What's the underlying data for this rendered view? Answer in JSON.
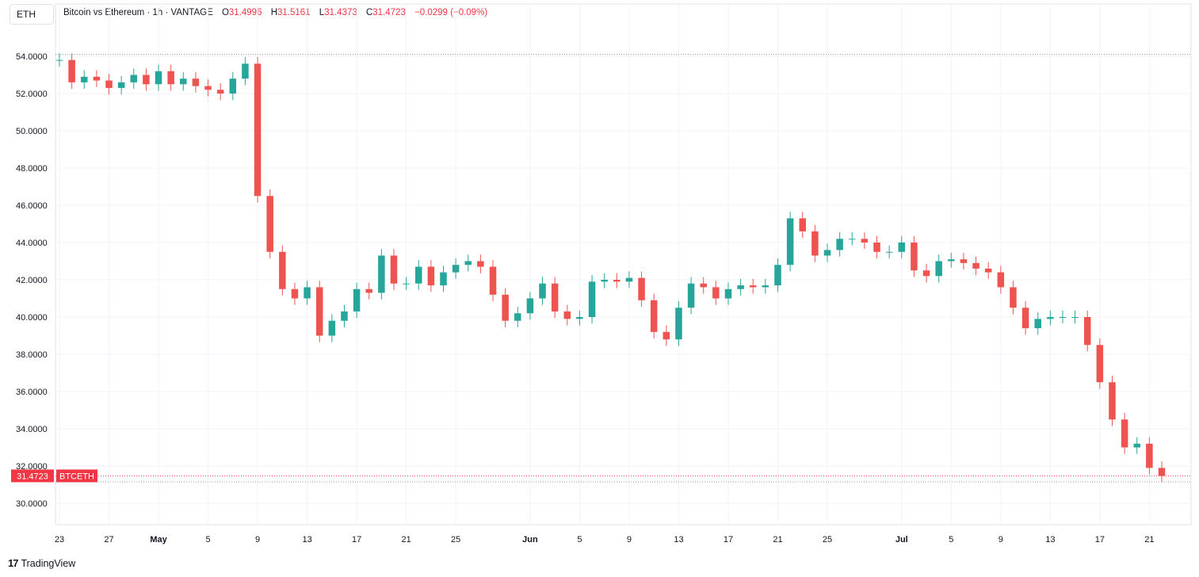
{
  "symbol_box": "ETH",
  "legend": {
    "title": "Bitcoin vs Ethereum · 1h · VANTAGE",
    "o_label": "O",
    "o_value": "31.4996",
    "h_label": "H",
    "h_value": "31.5161",
    "l_label": "L",
    "l_value": "31.4373",
    "c_label": "C",
    "c_value": "31.4723",
    "change": "−0.0299 (−0.09%)"
  },
  "footer": {
    "logo": "17",
    "brand": "TradingView"
  },
  "colors": {
    "up": "#26a69a",
    "down": "#ef5350",
    "grid": "#f0f3fa",
    "last_price": "#f23645"
  },
  "chart_data": {
    "type": "candlestick",
    "interval": "1h",
    "ylim": [
      29.0,
      55.0
    ],
    "y_ticks": [
      "30.0000",
      "32.0000",
      "34.0000",
      "36.0000",
      "38.0000",
      "40.0000",
      "42.0000",
      "44.0000",
      "46.0000",
      "48.0000",
      "50.0000",
      "52.0000",
      "54.0000"
    ],
    "x_ticks": [
      "23",
      "27",
      "May",
      "5",
      "9",
      "13",
      "17",
      "21",
      "25",
      "Jun",
      "5",
      "9",
      "13",
      "17",
      "21",
      "25",
      "Jul",
      "5",
      "9",
      "13",
      "17",
      "21"
    ],
    "last_price": "31.4723",
    "last_label": "BTCETH",
    "high_marker": 54.1,
    "low_marker": 31.15,
    "series": [
      {
        "date": "Apr 23",
        "value": 53.8
      },
      {
        "date": "Apr 24",
        "value": 52.6
      },
      {
        "date": "Apr 25",
        "value": 52.9
      },
      {
        "date": "Apr 26",
        "value": 52.7
      },
      {
        "date": "Apr 27",
        "value": 52.3
      },
      {
        "date": "Apr 28",
        "value": 52.6
      },
      {
        "date": "Apr 29",
        "value": 53.0
      },
      {
        "date": "Apr 30",
        "value": 52.5
      },
      {
        "date": "May 1",
        "value": 53.2
      },
      {
        "date": "May 2",
        "value": 52.5
      },
      {
        "date": "May 3",
        "value": 52.8
      },
      {
        "date": "May 4",
        "value": 52.4
      },
      {
        "date": "May 5",
        "value": 52.2
      },
      {
        "date": "May 6",
        "value": 52.0
      },
      {
        "date": "May 7",
        "value": 52.8
      },
      {
        "date": "May 8",
        "value": 53.6
      },
      {
        "date": "May 9",
        "value": 46.5
      },
      {
        "date": "May 10",
        "value": 43.5
      },
      {
        "date": "May 11",
        "value": 41.5
      },
      {
        "date": "May 12",
        "value": 41.0
      },
      {
        "date": "May 13",
        "value": 41.6
      },
      {
        "date": "May 14",
        "value": 39.0
      },
      {
        "date": "May 15",
        "value": 39.8
      },
      {
        "date": "May 16",
        "value": 40.3
      },
      {
        "date": "May 17",
        "value": 41.5
      },
      {
        "date": "May 18",
        "value": 41.3
      },
      {
        "date": "May 19",
        "value": 43.3
      },
      {
        "date": "May 20",
        "value": 41.8
      },
      {
        "date": "May 21",
        "value": 41.8
      },
      {
        "date": "May 22",
        "value": 42.7
      },
      {
        "date": "May 23",
        "value": 41.7
      },
      {
        "date": "May 24",
        "value": 42.4
      },
      {
        "date": "May 25",
        "value": 42.8
      },
      {
        "date": "May 26",
        "value": 43.0
      },
      {
        "date": "May 27",
        "value": 42.7
      },
      {
        "date": "May 28",
        "value": 41.2
      },
      {
        "date": "May 29",
        "value": 39.8
      },
      {
        "date": "May 30",
        "value": 40.2
      },
      {
        "date": "May 31",
        "value": 41.0
      },
      {
        "date": "Jun 1",
        "value": 41.8
      },
      {
        "date": "Jun 2",
        "value": 40.3
      },
      {
        "date": "Jun 3",
        "value": 39.9
      },
      {
        "date": "Jun 4",
        "value": 40.0
      },
      {
        "date": "Jun 5",
        "value": 41.9
      },
      {
        "date": "Jun 6",
        "value": 42.0
      },
      {
        "date": "Jun 7",
        "value": 41.9
      },
      {
        "date": "Jun 8",
        "value": 42.1
      },
      {
        "date": "Jun 9",
        "value": 40.9
      },
      {
        "date": "Jun 10",
        "value": 39.2
      },
      {
        "date": "Jun 11",
        "value": 38.8
      },
      {
        "date": "Jun 12",
        "value": 40.5
      },
      {
        "date": "Jun 13",
        "value": 41.8
      },
      {
        "date": "Jun 14",
        "value": 41.6
      },
      {
        "date": "Jun 15",
        "value": 41.0
      },
      {
        "date": "Jun 16",
        "value": 41.5
      },
      {
        "date": "Jun 17",
        "value": 41.7
      },
      {
        "date": "Jun 18",
        "value": 41.6
      },
      {
        "date": "Jun 19",
        "value": 41.7
      },
      {
        "date": "Jun 20",
        "value": 42.8
      },
      {
        "date": "Jun 21",
        "value": 45.3
      },
      {
        "date": "Jun 22",
        "value": 44.6
      },
      {
        "date": "Jun 23",
        "value": 43.3
      },
      {
        "date": "Jun 24",
        "value": 43.6
      },
      {
        "date": "Jun 25",
        "value": 44.2
      },
      {
        "date": "Jun 26",
        "value": 44.2
      },
      {
        "date": "Jun 27",
        "value": 44.0
      },
      {
        "date": "Jun 28",
        "value": 43.5
      },
      {
        "date": "Jun 29",
        "value": 43.5
      },
      {
        "date": "Jun 30",
        "value": 44.0
      },
      {
        "date": "Jul 1",
        "value": 42.5
      },
      {
        "date": "Jul 2",
        "value": 42.2
      },
      {
        "date": "Jul 3",
        "value": 43.0
      },
      {
        "date": "Jul 4",
        "value": 43.1
      },
      {
        "date": "Jul 5",
        "value": 42.9
      },
      {
        "date": "Jul 6",
        "value": 42.6
      },
      {
        "date": "Jul 7",
        "value": 42.4
      },
      {
        "date": "Jul 8",
        "value": 41.6
      },
      {
        "date": "Jul 9",
        "value": 40.5
      },
      {
        "date": "Jul 10",
        "value": 39.4
      },
      {
        "date": "Jul 11",
        "value": 39.9
      },
      {
        "date": "Jul 12",
        "value": 40.0
      },
      {
        "date": "Jul 13",
        "value": 40.0
      },
      {
        "date": "Jul 14",
        "value": 40.0
      },
      {
        "date": "Jul 15",
        "value": 38.5
      },
      {
        "date": "Jul 16",
        "value": 36.5
      },
      {
        "date": "Jul 17",
        "value": 34.5
      },
      {
        "date": "Jul 18",
        "value": 33.0
      },
      {
        "date": "Jul 19",
        "value": 33.2
      },
      {
        "date": "Jul 20",
        "value": 31.9
      },
      {
        "date": "Jul 21",
        "value": 31.47
      }
    ]
  }
}
